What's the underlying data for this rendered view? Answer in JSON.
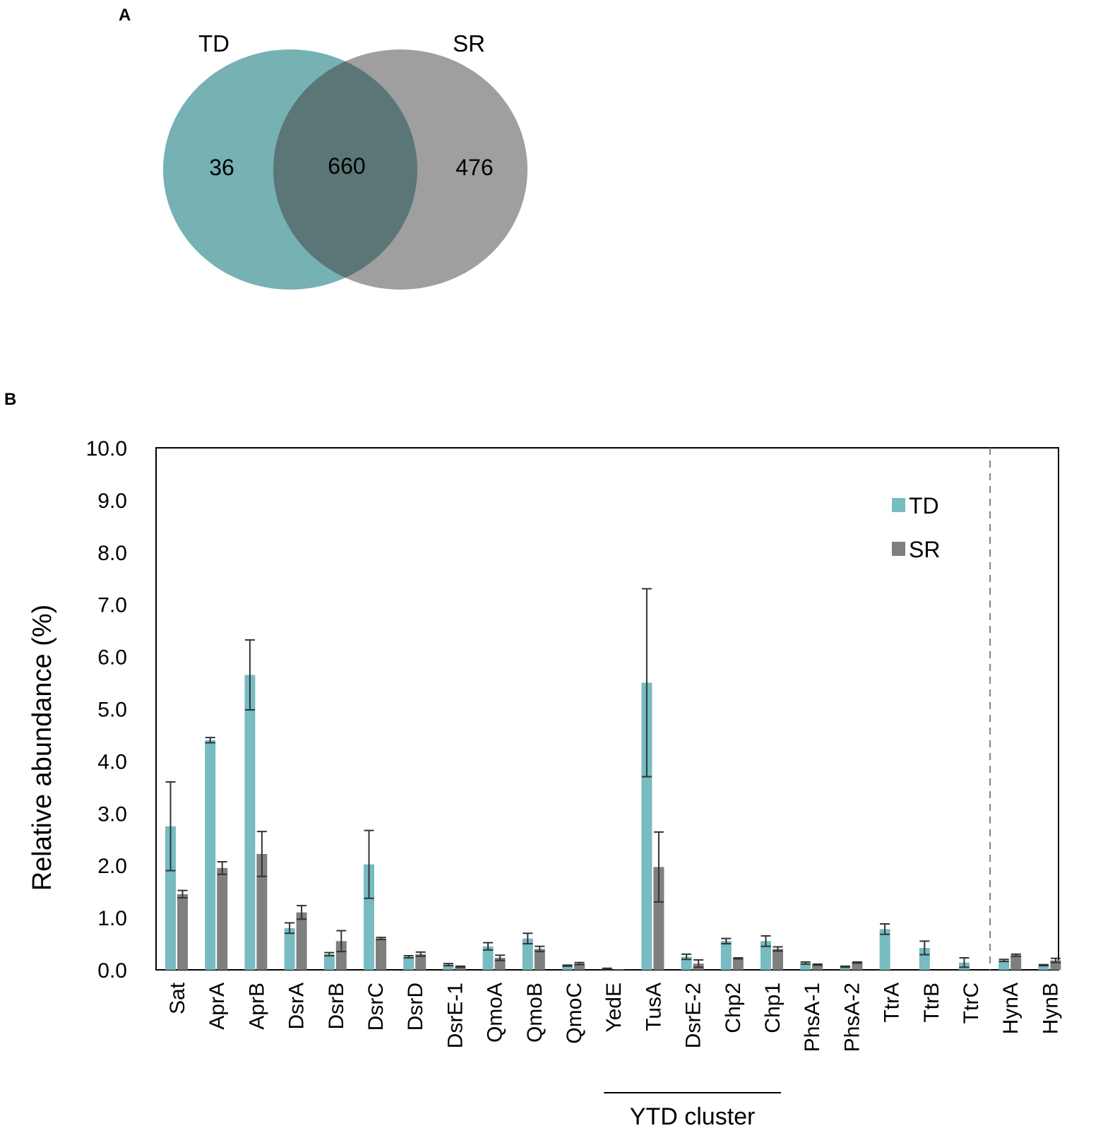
{
  "panels": {
    "a_label": "A",
    "b_label": "B"
  },
  "venn": {
    "left_label": "TD",
    "right_label": "SR",
    "left_only": "36",
    "overlap": "660",
    "right_only": "476",
    "left_color": "#76b1b4",
    "right_color": "#a09fa0",
    "overlap_color": "#5b7677"
  },
  "chart_data": {
    "type": "bar",
    "ylabel": "Relative abundance (%)",
    "xlabel": "",
    "ylim": [
      0,
      10
    ],
    "yticks": [
      "0.0",
      "1.0",
      "2.0",
      "3.0",
      "4.0",
      "5.0",
      "6.0",
      "7.0",
      "8.0",
      "9.0",
      "10.0"
    ],
    "grid": false,
    "legend_position": "top-right",
    "categories": [
      "Sat",
      "AprA",
      "AprB",
      "DsrA",
      "DsrB",
      "DsrC",
      "DsrD",
      "DsrE-1",
      "QmoA",
      "QmoB",
      "QmoC",
      "YedE",
      "TusA",
      "DsrE-2",
      "Chp2",
      "Chp1",
      "PhsA-1",
      "PhsA-2",
      "TtrA",
      "TtrB",
      "TtrC",
      "HynA",
      "HynB"
    ],
    "series": [
      {
        "name": "TD",
        "color": "#76bcc0",
        "values": [
          2.75,
          4.4,
          5.65,
          0.8,
          0.3,
          2.02,
          0.25,
          0.1,
          0.45,
          0.6,
          0.08,
          0.02,
          5.5,
          0.25,
          0.55,
          0.55,
          0.13,
          0.06,
          0.78,
          0.42,
          0.14,
          0.18,
          0.09
        ],
        "errors": [
          0.85,
          0.05,
          0.67,
          0.1,
          0.03,
          0.65,
          0.02,
          0.02,
          0.07,
          0.1,
          0.01,
          0.01,
          1.8,
          0.05,
          0.05,
          0.1,
          0.02,
          0.01,
          0.1,
          0.13,
          0.09,
          0.02,
          0.01
        ]
      },
      {
        "name": "SR",
        "color": "#7f7f7f",
        "values": [
          1.45,
          1.95,
          2.22,
          1.1,
          0.55,
          0.6,
          0.3,
          0.06,
          0.23,
          0.4,
          0.12,
          0.01,
          1.97,
          0.12,
          0.22,
          0.4,
          0.1,
          0.14,
          0.0,
          0.0,
          0.0,
          0.28,
          0.18
        ],
        "errors": [
          0.07,
          0.12,
          0.43,
          0.13,
          0.2,
          0.02,
          0.04,
          0.01,
          0.05,
          0.05,
          0.02,
          0.0,
          0.67,
          0.07,
          0.01,
          0.04,
          0.01,
          0.01,
          0.0,
          0.0,
          0.0,
          0.02,
          0.04
        ]
      }
    ],
    "cluster_annotation": {
      "label": "YTD cluster",
      "from_category": "YedE",
      "to_category": "Chp1"
    },
    "divider_after_category": "TtrC"
  }
}
